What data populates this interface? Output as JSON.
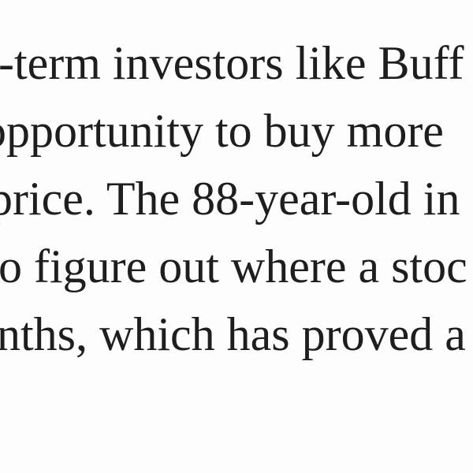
{
  "article": {
    "lines": [
      "-term investors like Buff",
      "opportunity to buy more",
      "price. The 88-year-old in",
      "o figure out where a stoc",
      "nths, which has proved a"
    ]
  }
}
